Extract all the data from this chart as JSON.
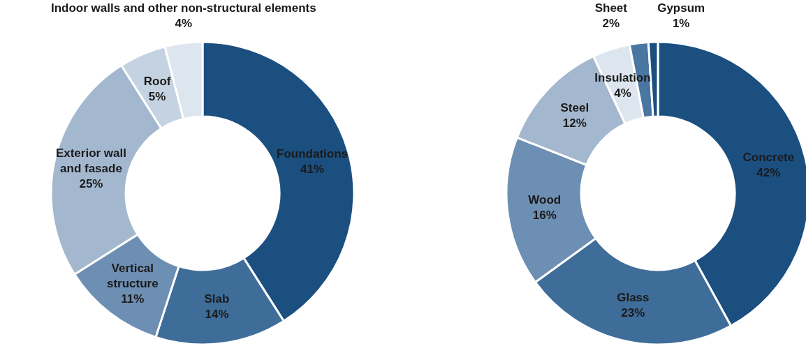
{
  "chart_data": [
    {
      "type": "donut",
      "categories": [
        "Foundations",
        "Slab",
        "Vertical structure",
        "Exterior wall and fasade",
        "Roof",
        "Indoor walls and other non-structural elements"
      ],
      "values": [
        41,
        14,
        11,
        25,
        5,
        4
      ],
      "colors": [
        "#1b4f80",
        "#3f6d99",
        "#6d8fb3",
        "#a3b8cf",
        "#c4d2e1",
        "#dde6ef"
      ],
      "value_labels": [
        "41%",
        "14%",
        "11%",
        "25%",
        "5%",
        "4%"
      ]
    },
    {
      "type": "donut",
      "categories": [
        "Concrete",
        "Glass",
        "Wood",
        "Steel",
        "Insulation",
        "Sheet",
        "Gypsum"
      ],
      "values": [
        42,
        23,
        16,
        12,
        4,
        2,
        1
      ],
      "colors": [
        "#1b4f80",
        "#3f6d99",
        "#6d8fb3",
        "#a3b8cf",
        "#dde6ef",
        "#4a76a2",
        "#1b4f80"
      ],
      "value_labels": [
        "42%",
        "23%",
        "16%",
        "12%",
        "4%",
        "2%",
        "1%"
      ]
    }
  ]
}
